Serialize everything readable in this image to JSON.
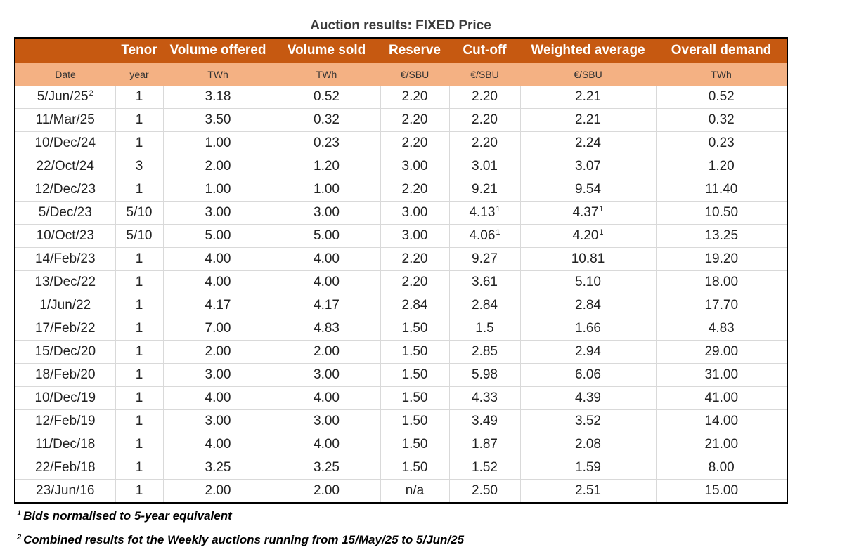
{
  "title": "Auction results: FIXED Price",
  "columns": [
    {
      "header": "",
      "unit": "Date"
    },
    {
      "header": "Tenor",
      "unit": "year"
    },
    {
      "header": "Volume offered",
      "unit": "TWh"
    },
    {
      "header": "Volume sold",
      "unit": "TWh"
    },
    {
      "header": "Reserve",
      "unit": "€/SBU"
    },
    {
      "header": "Cut-off",
      "unit": "€/SBU"
    },
    {
      "header": "Weighted average",
      "unit": "€/SBU"
    },
    {
      "header": "Overall demand",
      "unit": "TWh"
    }
  ],
  "rows": [
    {
      "date": "5/Jun/25",
      "date_note": "2",
      "tenor": "1",
      "offered": "3.18",
      "sold": "0.52",
      "reserve": "2.20",
      "cutoff": "2.20",
      "cutoff_note": "",
      "wavg": "2.21",
      "wavg_note": "",
      "demand": "0.52"
    },
    {
      "date": "11/Mar/25",
      "date_note": "",
      "tenor": "1",
      "offered": "3.50",
      "sold": "0.32",
      "reserve": "2.20",
      "cutoff": "2.20",
      "cutoff_note": "",
      "wavg": "2.21",
      "wavg_note": "",
      "demand": "0.32"
    },
    {
      "date": "10/Dec/24",
      "date_note": "",
      "tenor": "1",
      "offered": "1.00",
      "sold": "0.23",
      "reserve": "2.20",
      "cutoff": "2.20",
      "cutoff_note": "",
      "wavg": "2.24",
      "wavg_note": "",
      "demand": "0.23"
    },
    {
      "date": "22/Oct/24",
      "date_note": "",
      "tenor": "3",
      "offered": "2.00",
      "sold": "1.20",
      "reserve": "3.00",
      "cutoff": "3.01",
      "cutoff_note": "",
      "wavg": "3.07",
      "wavg_note": "",
      "demand": "1.20"
    },
    {
      "date": "12/Dec/23",
      "date_note": "",
      "tenor": "1",
      "offered": "1.00",
      "sold": "1.00",
      "reserve": "2.20",
      "cutoff": "9.21",
      "cutoff_note": "",
      "wavg": "9.54",
      "wavg_note": "",
      "demand": "11.40"
    },
    {
      "date": "5/Dec/23",
      "date_note": "",
      "tenor": "5/10",
      "offered": "3.00",
      "sold": "3.00",
      "reserve": "3.00",
      "cutoff": "4.13",
      "cutoff_note": "1",
      "wavg": "4.37",
      "wavg_note": "1",
      "demand": "10.50"
    },
    {
      "date": "10/Oct/23",
      "date_note": "",
      "tenor": "5/10",
      "offered": "5.00",
      "sold": "5.00",
      "reserve": "3.00",
      "cutoff": "4.06",
      "cutoff_note": "1",
      "wavg": "4.20",
      "wavg_note": "1",
      "demand": "13.25"
    },
    {
      "date": "14/Feb/23",
      "date_note": "",
      "tenor": "1",
      "offered": "4.00",
      "sold": "4.00",
      "reserve": "2.20",
      "cutoff": "9.27",
      "cutoff_note": "",
      "wavg": "10.81",
      "wavg_note": "",
      "demand": "19.20"
    },
    {
      "date": "13/Dec/22",
      "date_note": "",
      "tenor": "1",
      "offered": "4.00",
      "sold": "4.00",
      "reserve": "2.20",
      "cutoff": "3.61",
      "cutoff_note": "",
      "wavg": "5.10",
      "wavg_note": "",
      "demand": "18.00"
    },
    {
      "date": "1/Jun/22",
      "date_note": "",
      "tenor": "1",
      "offered": "4.17",
      "sold": "4.17",
      "reserve": "2.84",
      "cutoff": "2.84",
      "cutoff_note": "",
      "wavg": "2.84",
      "wavg_note": "",
      "demand": "17.70"
    },
    {
      "date": "17/Feb/22",
      "date_note": "",
      "tenor": "1",
      "offered": "7.00",
      "sold": "4.83",
      "reserve": "1.50",
      "cutoff": "1.5",
      "cutoff_note": "",
      "wavg": "1.66",
      "wavg_note": "",
      "demand": "4.83"
    },
    {
      "date": "15/Dec/20",
      "date_note": "",
      "tenor": "1",
      "offered": "2.00",
      "sold": "2.00",
      "reserve": "1.50",
      "cutoff": "2.85",
      "cutoff_note": "",
      "wavg": "2.94",
      "wavg_note": "",
      "demand": "29.00"
    },
    {
      "date": "18/Feb/20",
      "date_note": "",
      "tenor": "1",
      "offered": "3.00",
      "sold": "3.00",
      "reserve": "1.50",
      "cutoff": "5.98",
      "cutoff_note": "",
      "wavg": "6.06",
      "wavg_note": "",
      "demand": "31.00"
    },
    {
      "date": "10/Dec/19",
      "date_note": "",
      "tenor": "1",
      "offered": "4.00",
      "sold": "4.00",
      "reserve": "1.50",
      "cutoff": "4.33",
      "cutoff_note": "",
      "wavg": "4.39",
      "wavg_note": "",
      "demand": "41.00"
    },
    {
      "date": "12/Feb/19",
      "date_note": "",
      "tenor": "1",
      "offered": "3.00",
      "sold": "3.00",
      "reserve": "1.50",
      "cutoff": "3.49",
      "cutoff_note": "",
      "wavg": "3.52",
      "wavg_note": "",
      "demand": "14.00"
    },
    {
      "date": "11/Dec/18",
      "date_note": "",
      "tenor": "1",
      "offered": "4.00",
      "sold": "4.00",
      "reserve": "1.50",
      "cutoff": "1.87",
      "cutoff_note": "",
      "wavg": "2.08",
      "wavg_note": "",
      "demand": "21.00"
    },
    {
      "date": "22/Feb/18",
      "date_note": "",
      "tenor": "1",
      "offered": "3.25",
      "sold": "3.25",
      "reserve": "1.50",
      "cutoff": "1.52",
      "cutoff_note": "",
      "wavg": "1.59",
      "wavg_note": "",
      "demand": "8.00"
    },
    {
      "date": "23/Jun/16",
      "date_note": "",
      "tenor": "1",
      "offered": "2.00",
      "sold": "2.00",
      "reserve": "n/a",
      "cutoff": "2.50",
      "cutoff_note": "",
      "wavg": "2.51",
      "wavg_note": "",
      "demand": "15.00"
    }
  ],
  "footnotes": [
    {
      "mark": "1",
      "text": "Bids normalised to 5-year equivalent"
    },
    {
      "mark": "2",
      "text": "Combined results fot the Weekly auctions running from 15/May/25 to 5/Jun/25"
    }
  ],
  "colors": {
    "header": "#c65911",
    "units_row": "#f4b183",
    "border": "#000000",
    "gridline": "#d9d9d9"
  }
}
